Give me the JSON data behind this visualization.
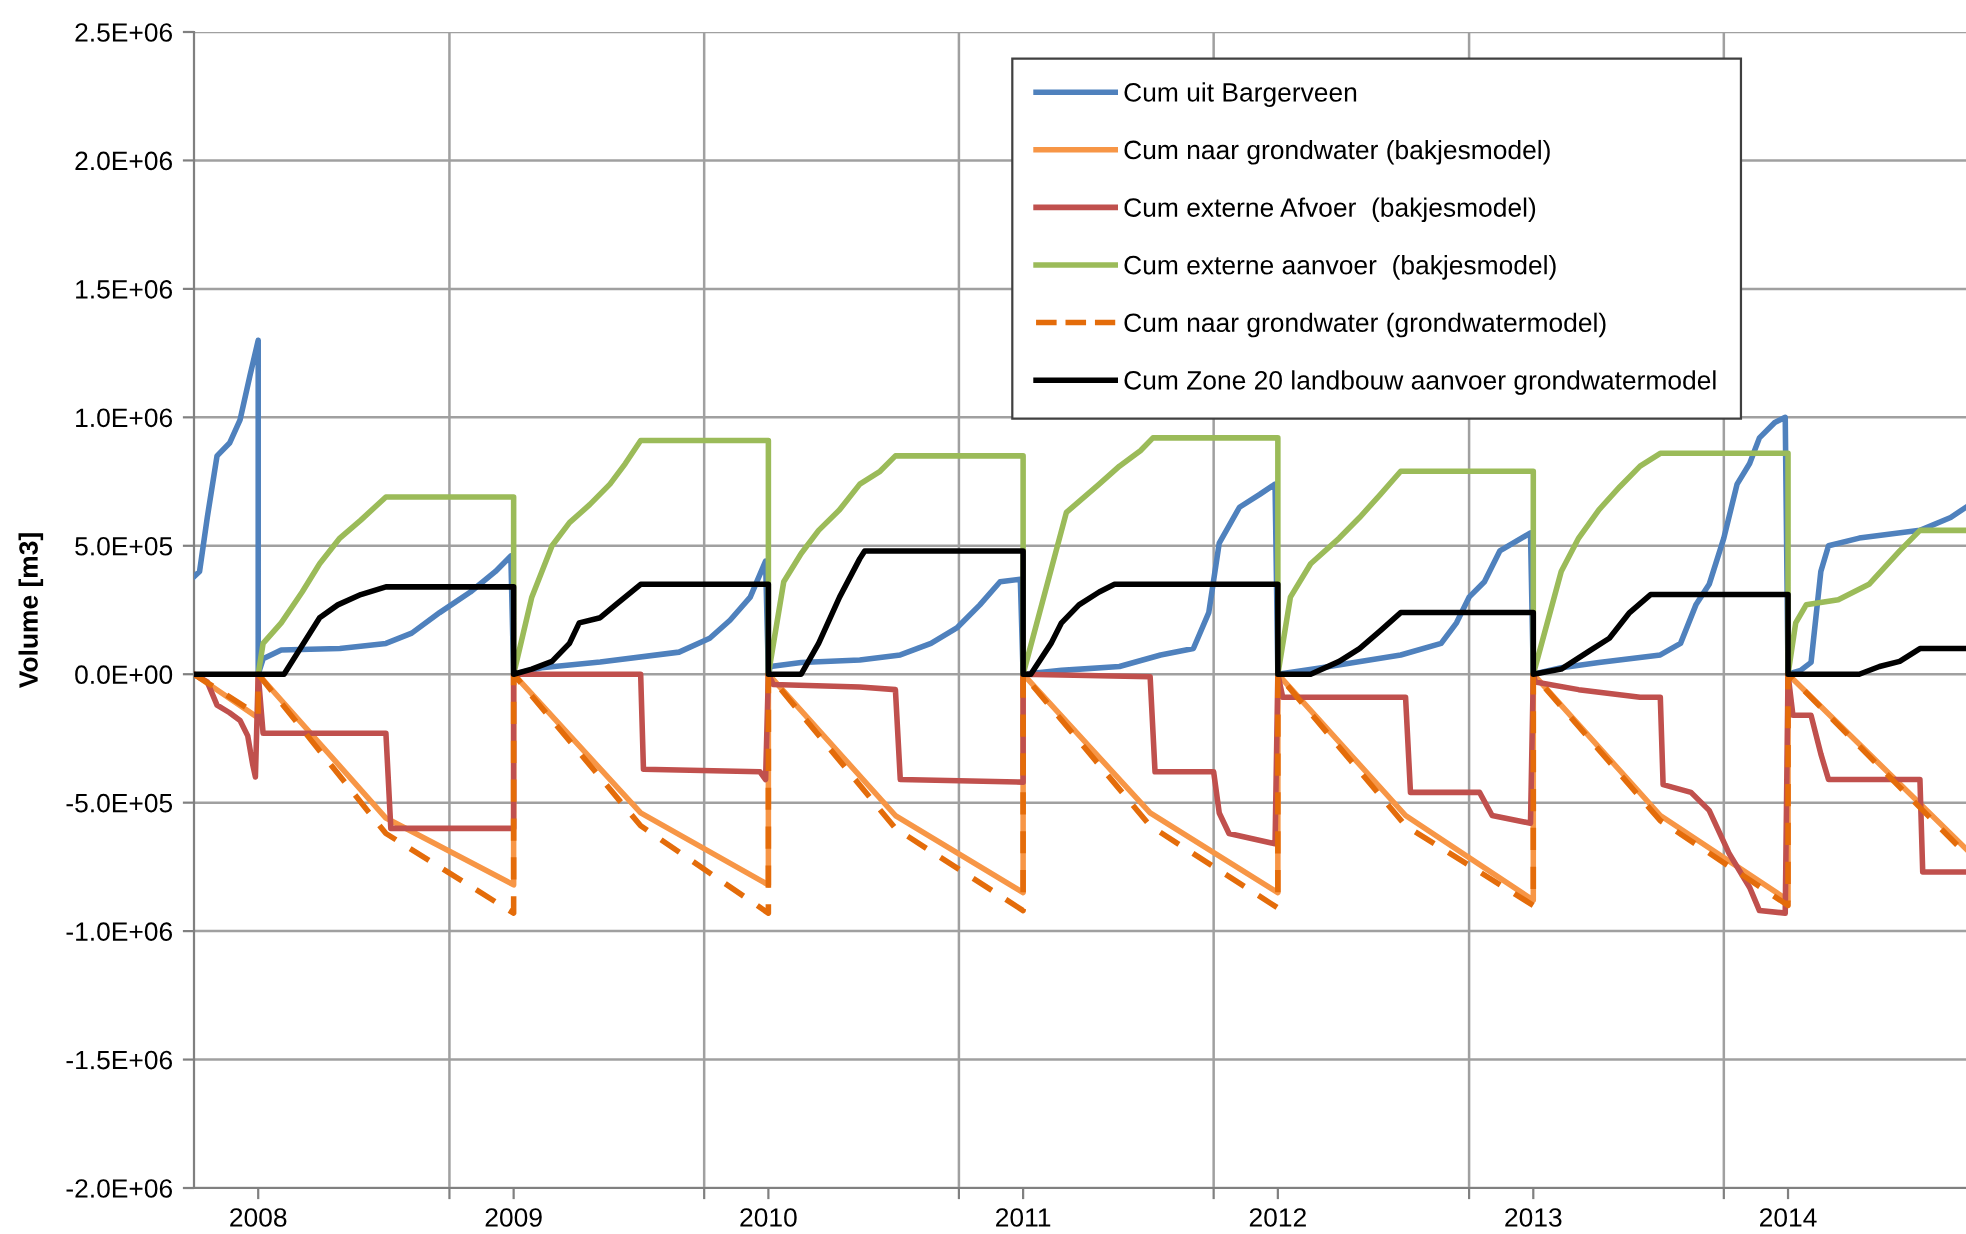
{
  "chart_data": {
    "type": "line",
    "ylabel": "Volume [m3]",
    "xlim": [
      "2007-10-01",
      "2014-09-13"
    ],
    "ylim": [
      -2000000,
      2500000
    ],
    "xticks": [
      "2008",
      "2009",
      "2010",
      "2011",
      "2012",
      "2013",
      "2014",
      {
        "value": "2008-10-01",
        "label": null
      },
      {
        "value": "2009-10-01",
        "label": null
      },
      {
        "value": "2010-10-01",
        "label": null
      },
      {
        "value": "2011-10-01",
        "label": null
      },
      {
        "value": "2012-10-01",
        "label": null
      },
      {
        "value": "2013-10-01",
        "label": null
      }
    ],
    "yticks": [
      {
        "value": -2000000,
        "label": "-2.0E+06"
      },
      {
        "value": -1500000,
        "label": "-1.5E+06"
      },
      {
        "value": -1000000,
        "label": "-1.0E+06"
      },
      {
        "value": -500000,
        "label": "-5.0E+05"
      },
      {
        "value": 0,
        "label": "0.0E+00"
      },
      {
        "value": 500000,
        "label": "5.0E+05"
      },
      {
        "value": 1000000,
        "label": "1.0E+06"
      },
      {
        "value": 1500000,
        "label": "1.5E+06"
      },
      {
        "value": 2000000,
        "label": "2.0E+06"
      },
      {
        "value": 2500000,
        "label": "2.5E+06"
      }
    ],
    "grid": true,
    "legend": "top right",
    "marker": "none",
    "series": [
      {
        "name": "Cum uit Bargerveen",
        "color": "#4f81bd",
        "line_style": "solid",
        "x": [
          "2007-10-01",
          "2007-10-09",
          "2007-10-20",
          "2007-11-03",
          "2007-11-21",
          "2007-12-06",
          "2007-12-20",
          "2008-01-01",
          "2008-01-01",
          "2008-01-08",
          "2008-02-03",
          "2008-04-27",
          "2008-07-02",
          "2008-08-08",
          "2008-09-17",
          "2008-10-31",
          "2008-12-06",
          "2008-12-28",
          "2009-01-01",
          "2009-02-10",
          "2009-05-05",
          "2009-08-26",
          "2009-10-09",
          "2009-11-07",
          "2009-12-06",
          "2009-12-28",
          "2010-01-01",
          "2010-01-04",
          "2010-02-17",
          "2010-05-12",
          "2010-07-09",
          "2010-08-22",
          "2010-09-28",
          "2010-10-31",
          "2010-11-29",
          "2010-12-28",
          "2011-01-01",
          "2011-02-25",
          "2011-05-19",
          "2011-07-17",
          "2011-09-02",
          "2011-09-24",
          "2011-10-09",
          "2011-11-07",
          "2011-12-06",
          "2011-12-28",
          "2012-01-01",
          "2012-02-28",
          "2012-06-25",
          "2012-08-22",
          "2012-09-13",
          "2012-10-01",
          "2012-10-23",
          "2012-11-14",
          "2012-12-28",
          "2013-01-01",
          "2013-02-10",
          "2013-04-05",
          "2013-07-02",
          "2013-07-31",
          "2013-08-22",
          "2013-09-10",
          "2013-10-01",
          "2013-10-20",
          "2013-11-07",
          "2013-11-21",
          "2013-12-13",
          "2013-12-28",
          "2014-01-01",
          "2014-01-19",
          "2014-02-03",
          "2014-02-17",
          "2014-02-28",
          "2014-04-13",
          "2014-07-09",
          "2014-08-22",
          "2014-09-13"
        ],
        "values": [
          380000,
          400000,
          610000,
          850000,
          900000,
          990000,
          1160000,
          1300000,
          0,
          60000,
          94000,
          100000,
          120000,
          160000,
          240000,
          320000,
          400000,
          460000,
          0,
          25000,
          48000,
          86000,
          140000,
          210000,
          300000,
          440000,
          0,
          30000,
          46000,
          55000,
          75000,
          120000,
          180000,
          270000,
          360000,
          370000,
          0,
          15000,
          30000,
          75000,
          100000,
          240000,
          510000,
          650000,
          700000,
          740000,
          0,
          23000,
          75000,
          120000,
          200000,
          300000,
          360000,
          480000,
          550000,
          0,
          25000,
          46000,
          75000,
          120000,
          270000,
          350000,
          530000,
          740000,
          820000,
          920000,
          980000,
          1000000,
          0,
          15000,
          46000,
          400000,
          500000,
          530000,
          560000,
          610000,
          650000
        ]
      },
      {
        "name": "Cum naar grondwater (bakjesmodel)",
        "color": "#f79646",
        "line_style": "solid",
        "x": [
          "2007-10-01",
          "2008-01-01",
          "2008-01-01",
          "2008-07-02",
          "2009-01-01",
          "2009-01-01",
          "2009-07-02",
          "2010-01-01",
          "2010-01-01",
          "2010-07-02",
          "2011-01-01",
          "2011-01-01",
          "2011-07-02",
          "2012-01-01",
          "2012-01-01",
          "2012-07-02",
          "2013-01-01",
          "2013-01-01",
          "2013-07-02",
          "2014-01-01",
          "2014-01-01",
          "2014-09-13"
        ],
        "values": [
          0,
          -170000,
          0,
          -560000,
          -820000,
          0,
          -540000,
          -820000,
          0,
          -550000,
          -850000,
          0,
          -540000,
          -850000,
          0,
          -550000,
          -880000,
          0,
          -550000,
          -880000,
          0,
          -680000
        ]
      },
      {
        "name": "Cum externe Afvoer  (bakjesmodel)",
        "color": "#c0504d",
        "line_style": "solid",
        "x": [
          "2007-10-01",
          "2007-10-20",
          "2007-11-03",
          "2007-11-21",
          "2007-12-06",
          "2007-12-17",
          "2007-12-24",
          "2007-12-28",
          "2008-01-01",
          "2008-01-08",
          "2008-07-02",
          "2008-07-09",
          "2009-01-01",
          "2009-01-01",
          "2009-07-02",
          "2009-07-06",
          "2009-12-20",
          "2009-12-28",
          "2010-01-01",
          "2010-01-08",
          "2010-05-12",
          "2010-07-02",
          "2010-07-09",
          "2011-01-01",
          "2011-01-01",
          "2011-07-02",
          "2011-07-09",
          "2011-10-01",
          "2011-10-09",
          "2011-10-23",
          "2011-12-28",
          "2012-01-01",
          "2012-01-08",
          "2012-07-02",
          "2012-07-09",
          "2012-10-16",
          "2012-11-03",
          "2012-12-28",
          "2013-01-01",
          "2013-01-04",
          "2013-03-07",
          "2013-06-03",
          "2013-07-02",
          "2013-07-06",
          "2013-08-15",
          "2013-09-10",
          "2013-10-09",
          "2013-11-07",
          "2013-11-21",
          "2013-12-28",
          "2014-01-01",
          "2014-01-08",
          "2014-02-03",
          "2014-02-17",
          "2014-02-28",
          "2014-07-09",
          "2014-07-13",
          "2014-09-13"
        ],
        "values": [
          0,
          -30000,
          -120000,
          -150000,
          -180000,
          -240000,
          -350000,
          -400000,
          0,
          -230000,
          -230000,
          -600000,
          -600000,
          0,
          0,
          -370000,
          -380000,
          -410000,
          0,
          -40000,
          -50000,
          -60000,
          -410000,
          -420000,
          0,
          -10000,
          -380000,
          -380000,
          -540000,
          -620000,
          -660000,
          0,
          -90000,
          -90000,
          -460000,
          -460000,
          -550000,
          -580000,
          0,
          -30000,
          -60000,
          -90000,
          -90000,
          -430000,
          -460000,
          -530000,
          -700000,
          -830000,
          -920000,
          -930000,
          0,
          -160000,
          -160000,
          -310000,
          -410000,
          -410000,
          -770000,
          -770000
        ]
      },
      {
        "name": "Cum externe aanvoer  (bakjesmodel)",
        "color": "#9bbb59",
        "line_style": "solid",
        "x": [
          "2008-01-01",
          "2008-01-08",
          "2008-02-03",
          "2008-03-04",
          "2008-03-29",
          "2008-04-27",
          "2008-05-27",
          "2008-07-02",
          "2009-01-01",
          "2009-01-01",
          "2009-01-27",
          "2009-02-25",
          "2009-03-22",
          "2009-04-20",
          "2009-05-19",
          "2009-06-10",
          "2009-07-02",
          "2010-01-01",
          "2010-01-01",
          "2010-01-23",
          "2010-02-17",
          "2010-03-14",
          "2010-04-13",
          "2010-05-12",
          "2010-06-10",
          "2010-07-02",
          "2011-01-01",
          "2011-01-01",
          "2011-03-04",
          "2011-04-20",
          "2011-05-19",
          "2011-06-18",
          "2011-07-06",
          "2012-01-01",
          "2012-01-01",
          "2012-01-19",
          "2012-02-17",
          "2012-03-29",
          "2012-04-27",
          "2012-05-27",
          "2012-06-25",
          "2013-01-01",
          "2013-01-01",
          "2013-02-10",
          "2013-03-07",
          "2013-04-05",
          "2013-05-05",
          "2013-06-03",
          "2013-07-02",
          "2014-01-01",
          "2014-01-01",
          "2014-01-12",
          "2014-01-27",
          "2014-03-14",
          "2014-04-27",
          "2014-06-10",
          "2014-07-09",
          "2014-09-13"
        ],
        "values": [
          0,
          120000,
          200000,
          320000,
          430000,
          530000,
          600000,
          690000,
          690000,
          0,
          300000,
          500000,
          590000,
          660000,
          740000,
          820000,
          910000,
          910000,
          0,
          360000,
          470000,
          560000,
          640000,
          740000,
          790000,
          850000,
          850000,
          0,
          630000,
          740000,
          810000,
          870000,
          920000,
          920000,
          0,
          300000,
          430000,
          530000,
          610000,
          700000,
          790000,
          790000,
          0,
          400000,
          530000,
          640000,
          730000,
          810000,
          860000,
          860000,
          0,
          200000,
          270000,
          290000,
          350000,
          480000,
          560000,
          560000
        ]
      },
      {
        "name": "Cum naar grondwater (grondwatermodel)",
        "color": "#e46c0a",
        "line_style": "dashed",
        "x": [
          "2007-10-01",
          "2008-01-01",
          "2008-01-01",
          "2008-07-02",
          "2009-01-01",
          "2009-01-01",
          "2009-07-02",
          "2010-01-01",
          "2010-01-01",
          "2010-07-02",
          "2011-01-01",
          "2011-01-01",
          "2011-07-02",
          "2012-01-01",
          "2012-01-01",
          "2012-07-02",
          "2013-01-01",
          "2013-01-01",
          "2013-07-02",
          "2014-01-01",
          "2014-01-01",
          "2014-09-13"
        ],
        "values": [
          0,
          -160000,
          0,
          -620000,
          -930000,
          0,
          -590000,
          -930000,
          0,
          -600000,
          -920000,
          0,
          -590000,
          -910000,
          0,
          -590000,
          -900000,
          0,
          -570000,
          -900000,
          0,
          -700000
        ]
      },
      {
        "name": "Cum Zone 20 landbouw aanvoer grondwatermodel",
        "color": "#000000",
        "line_style": "solid",
        "x": [
          "2007-10-01",
          "2008-02-07",
          "2008-02-28",
          "2008-03-29",
          "2008-04-24",
          "2008-05-27",
          "2008-07-02",
          "2009-01-01",
          "2009-01-01",
          "2009-01-27",
          "2009-02-25",
          "2009-03-22",
          "2009-04-05",
          "2009-05-05",
          "2009-05-27",
          "2009-07-02",
          "2010-01-01",
          "2010-01-01",
          "2010-02-17",
          "2010-03-14",
          "2010-04-13",
          "2010-05-12",
          "2010-05-19",
          "2011-01-01",
          "2011-01-01",
          "2011-01-12",
          "2011-02-10",
          "2011-02-25",
          "2011-03-22",
          "2011-04-20",
          "2011-05-12",
          "2012-01-01",
          "2012-01-01",
          "2012-02-17",
          "2012-03-29",
          "2012-04-27",
          "2012-05-27",
          "2012-06-25",
          "2013-01-01",
          "2013-01-01",
          "2013-02-10",
          "2013-03-22",
          "2013-04-20",
          "2013-05-19",
          "2013-06-18",
          "2014-01-01",
          "2014-01-01",
          "2014-04-13",
          "2014-05-12",
          "2014-06-10",
          "2014-07-09",
          "2014-09-13"
        ],
        "values": [
          0,
          0,
          90000,
          220000,
          270000,
          310000,
          340000,
          340000,
          0,
          20000,
          50000,
          120000,
          200000,
          220000,
          270000,
          350000,
          350000,
          0,
          0,
          120000,
          300000,
          450000,
          480000,
          480000,
          0,
          0,
          120000,
          200000,
          270000,
          320000,
          350000,
          350000,
          0,
          0,
          50000,
          100000,
          170000,
          240000,
          240000,
          0,
          20000,
          90000,
          140000,
          240000,
          310000,
          310000,
          0,
          0,
          30000,
          50000,
          100000,
          100000
        ]
      }
    ]
  }
}
